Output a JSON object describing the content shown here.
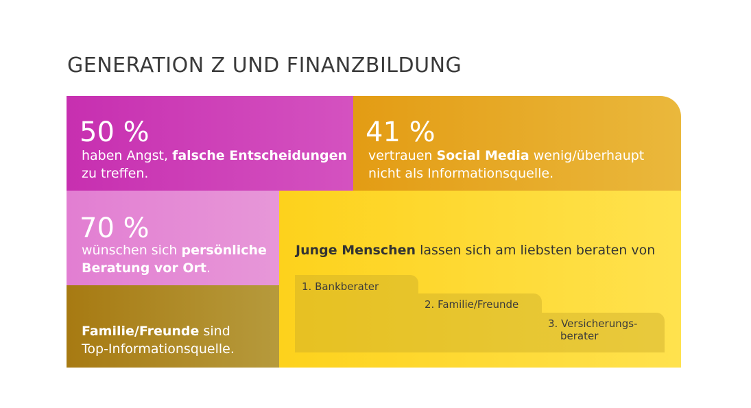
{
  "title": "GENERATION Z UND FINANZBILDUNG",
  "colors": {
    "magenta": "#c72fb0",
    "orange": "#e39c14",
    "pink": "#e27ed2",
    "brown": "#a77a12",
    "yellow": "#fdd21c"
  },
  "tiles": {
    "angst": {
      "percent": "50 %",
      "pre": "haben Angst,",
      "bold": "falsche Entscheidungen",
      "post": "zu treffen."
    },
    "social": {
      "percent": "41 %",
      "pre": "vertrauen",
      "bold": "Social Media",
      "post1": "wenig/überhaupt",
      "post2": "nicht als Informationsquelle."
    },
    "beratung": {
      "percent": "70 %",
      "pre": "wünschen sich",
      "bold1": "persönliche",
      "bold2": "Beratung vor Ort",
      "post": "."
    },
    "familie": {
      "bold": "Familie/Freunde",
      "post1": "sind",
      "post2": "Top-Informationsquelle."
    },
    "junge": {
      "bold": "Junge Menschen",
      "post": "lassen sich am liebsten beraten von",
      "ranking": [
        "1. Bankberater",
        "2. Familie/Freunde",
        "3. Versicherungs-",
        "berater"
      ]
    }
  }
}
